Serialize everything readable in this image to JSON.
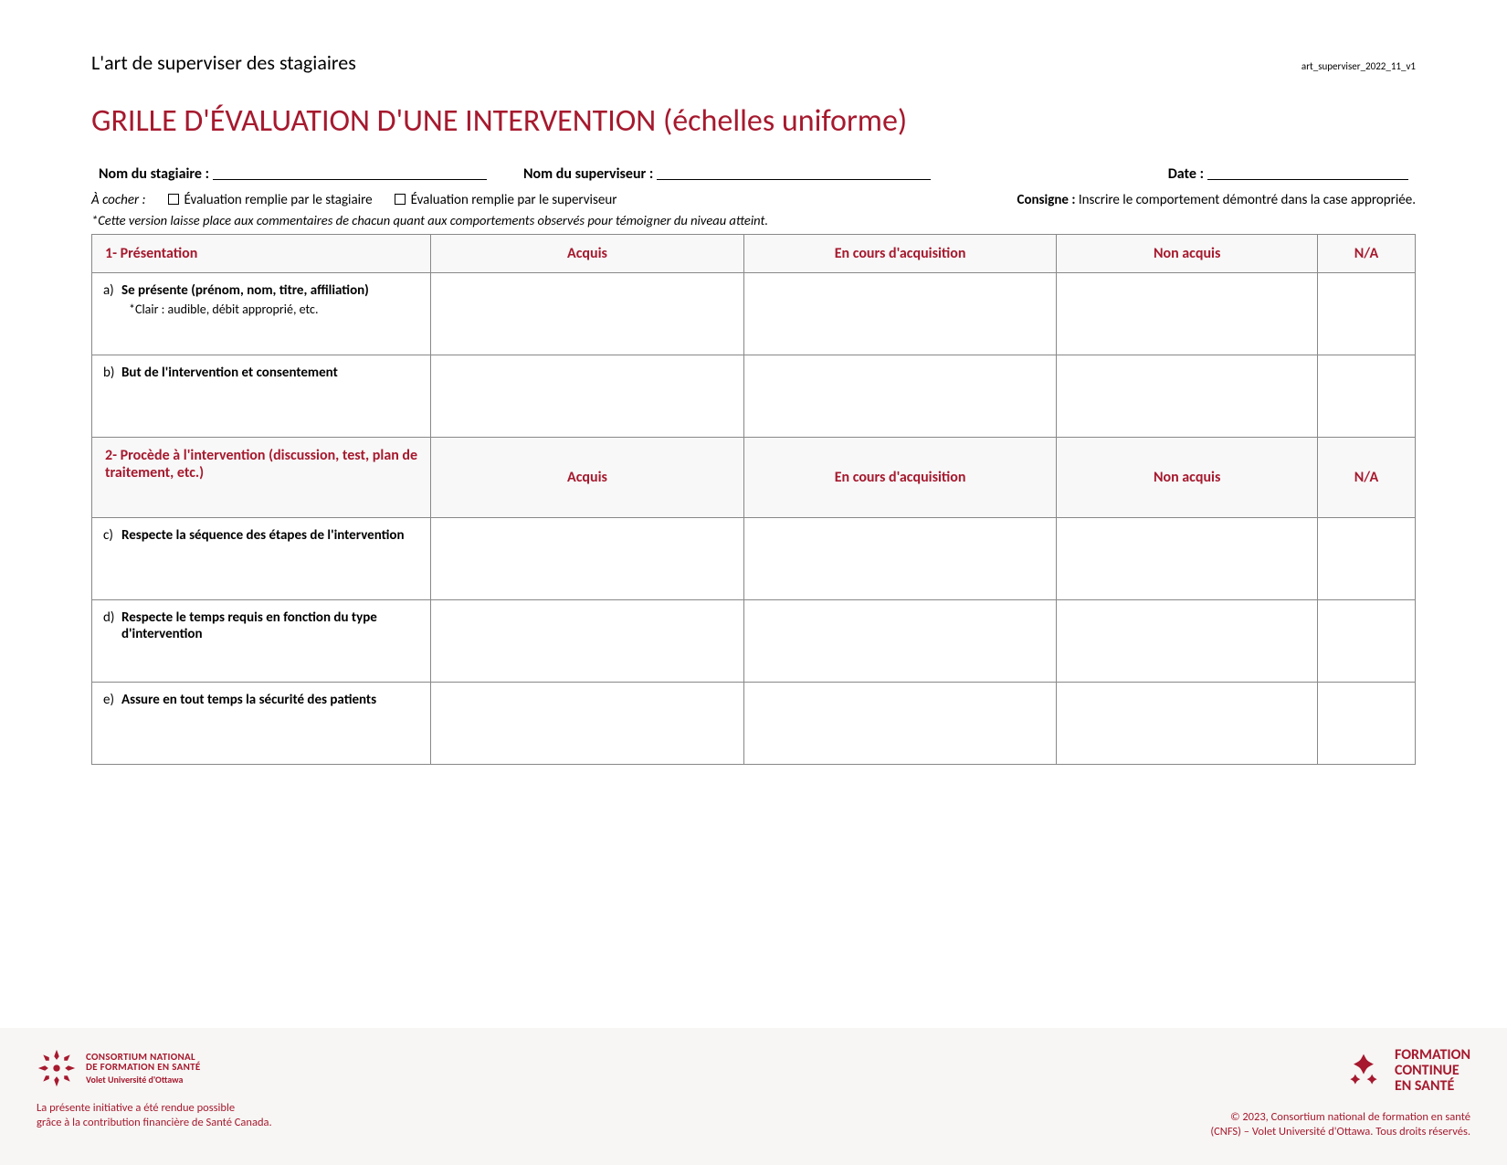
{
  "colors": {
    "accent": "#a6192e",
    "border": "#888888",
    "header_bg": "#f8f8f8",
    "footer_bg": "#f7f6f4",
    "text": "#000000"
  },
  "header": {
    "subtitle": "L'art de superviser des stagiaires",
    "version": "art_superviser_2022_11_v1",
    "title": "GRILLE D'ÉVALUATION D'UNE INTERVENTION (échelles uniforme)"
  },
  "fields": {
    "stagiaire_label": "Nom du stagiaire :",
    "superviseur_label": "Nom du superviseur :",
    "date_label": "Date :"
  },
  "check_row": {
    "a_cocher": "À cocher :",
    "opt1": "Évaluation remplie par le stagiaire",
    "opt2": "Évaluation remplie par le superviseur",
    "consigne_label": "Consigne : ",
    "consigne_text": "Inscrire le comportement démontré dans la case appropriée."
  },
  "note": "*Cette version laisse place aux commentaires de chacun quant aux comportements observés pour témoigner du niveau atteint.",
  "columns": {
    "acquis": "Acquis",
    "en_cours": "En cours d'acquisition",
    "non_acquis": "Non acquis",
    "na": "N/A"
  },
  "sections": [
    {
      "title": "1- Présentation",
      "rows": [
        {
          "letter": "a)",
          "text": "Se présente (prénom, nom, titre, affiliation)",
          "sub": "*Clair : audible, débit approprié, etc."
        },
        {
          "letter": "b)",
          "text": "But de l'intervention et consentement"
        }
      ]
    },
    {
      "title": "2- Procède à l'intervention (discussion, test, plan de traitement, etc.)",
      "rows": [
        {
          "letter": "c)",
          "text": "Respecte la séquence des étapes de l'intervention"
        },
        {
          "letter": "d)",
          "text": "Respecte le temps requis en fonction du type d'intervention"
        },
        {
          "letter": "e)",
          "text": "Assure en tout temps la sécurité des patients"
        }
      ]
    }
  ],
  "footer": {
    "left_logo_line1": "CONSORTIUM NATIONAL",
    "left_logo_line2": "DE FORMATION EN SANTÉ",
    "left_logo_sub": "Volet Université d'Ottawa",
    "left_note_l1": "La présente initiative a été rendue possible",
    "left_note_l2": "grâce à la contribution financière de Santé Canada.",
    "right_logo_l1": "FORMATION",
    "right_logo_l2": "CONTINUE",
    "right_logo_l3": "EN SANTÉ",
    "copy_l1": "© 2023, Consortium national de formation en santé",
    "copy_l2": "(CNFS) – Volet Université d'Ottawa. Tous droits réservés."
  }
}
